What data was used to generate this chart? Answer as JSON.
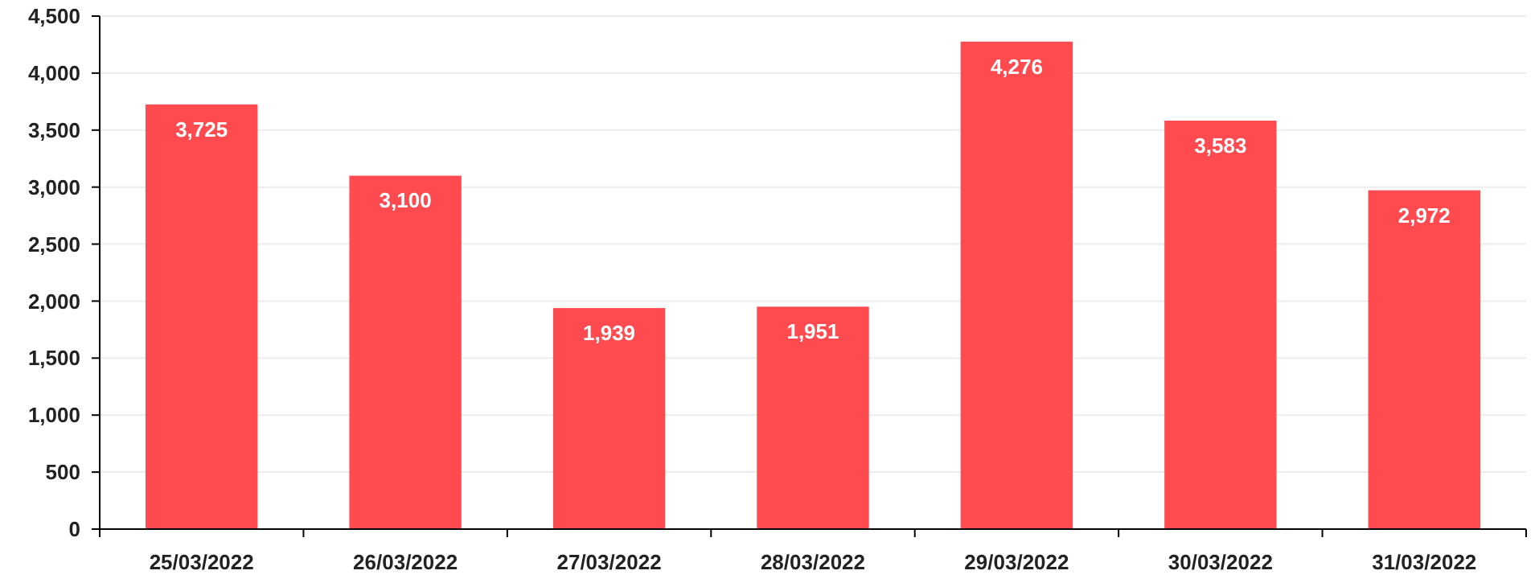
{
  "chart_data": {
    "type": "bar",
    "categories": [
      "25/03/2022",
      "26/03/2022",
      "27/03/2022",
      "28/03/2022",
      "29/03/2022",
      "30/03/2022",
      "31/03/2022"
    ],
    "values": [
      3725,
      3100,
      1939,
      1951,
      4276,
      3583,
      2972
    ],
    "color": "#ff4b4f",
    "ylim": [
      0,
      4500
    ],
    "yticks": [
      0,
      {
        "value": 500,
        "label": "500"
      },
      {
        "value": 1000,
        "label": "1,000"
      },
      {
        "value": 1500,
        "label": "1,500"
      },
      {
        "value": 2000,
        "label": "2,000"
      },
      {
        "value": 2500,
        "label": "2,500"
      },
      {
        "value": 3000,
        "label": "3,000"
      },
      {
        "value": 3500,
        "label": "3,500"
      },
      {
        "value": 4000,
        "label": "4,000"
      },
      {
        "value": 4500,
        "label": "4,500"
      }
    ],
    "value_labels": [
      "3,725",
      "3,100",
      "1,939",
      "1,951",
      "4,276",
      "3,583",
      "2,972"
    ],
    "grid": "y"
  }
}
